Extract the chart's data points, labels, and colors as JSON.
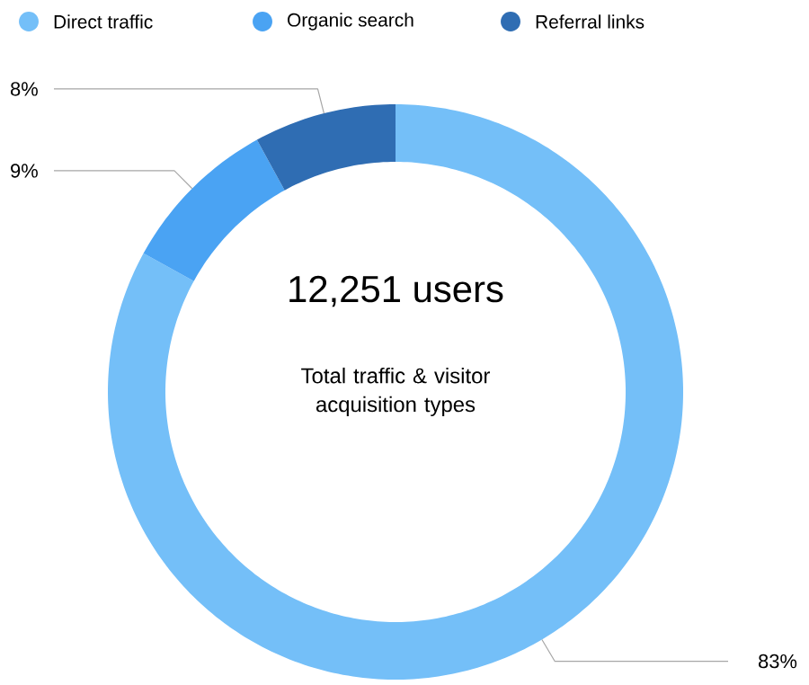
{
  "chart_data": {
    "type": "donut",
    "categories": [
      "Direct traffic",
      "Organic search",
      "Referral links"
    ],
    "values": [
      83,
      9,
      8
    ],
    "colors": [
      "#74bff8",
      "#4aa3f3",
      "#2f6db3"
    ],
    "value_labels": [
      "83%",
      "9%",
      "8%"
    ],
    "legend": "top",
    "annotations": [
      "12,251 users",
      "Total traffic & visitor acquisition types"
    ]
  }
}
